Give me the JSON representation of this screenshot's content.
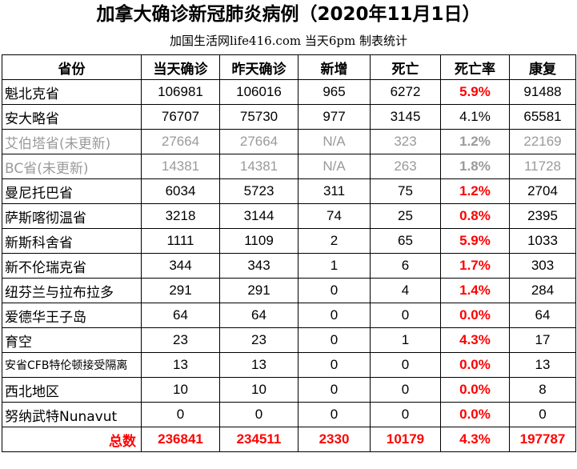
{
  "title": "加拿大确诊新冠肺炎病例（2020年11月1日）",
  "subtitle": "加国生活网life416.com 当天6pm 制表统计",
  "headers": [
    "省份",
    "当天确诊",
    "昨天确诊",
    "新增",
    "死亡",
    "死亡率",
    "康复"
  ],
  "rows": [
    {
      "province": "魁北克省",
      "today": "106981",
      "yesterday": "106016",
      "new": "965",
      "deaths": "6272",
      "rate": "5.9%",
      "recovered": "91488"
    },
    {
      "province": "安大略省",
      "today": "76707",
      "yesterday": "75730",
      "new": "977",
      "deaths": "3145",
      "rate": "4.1%",
      "recovered": "65581"
    },
    {
      "province": "艾伯塔省(未更新)",
      "today": "27664",
      "yesterday": "27664",
      "new": "N/A",
      "deaths": "323",
      "rate": "1.2%",
      "recovered": "22169"
    },
    {
      "province": "BC省(未更新)",
      "today": "14381",
      "yesterday": "14381",
      "new": "N/A",
      "deaths": "263",
      "rate": "1.8%",
      "recovered": "11728"
    },
    {
      "province": "曼尼托巴省",
      "today": "6034",
      "yesterday": "5723",
      "new": "311",
      "deaths": "75",
      "rate": "1.2%",
      "recovered": "2704"
    },
    {
      "province": "萨斯喀彻温省",
      "today": "3218",
      "yesterday": "3144",
      "new": "74",
      "deaths": "25",
      "rate": "0.8%",
      "recovered": "2395"
    },
    {
      "province": "新斯科舍省",
      "today": "1111",
      "yesterday": "1109",
      "new": "2",
      "deaths": "65",
      "rate": "5.9%",
      "recovered": "1033"
    },
    {
      "province": "新不伦瑞克省",
      "today": "344",
      "yesterday": "343",
      "new": "1",
      "deaths": "6",
      "rate": "1.7%",
      "recovered": "303"
    },
    {
      "province": "纽芬兰与拉布拉多",
      "today": "291",
      "yesterday": "291",
      "new": "0",
      "deaths": "4",
      "rate": "1.4%",
      "recovered": "284"
    },
    {
      "province": "爱德华王子岛",
      "today": "64",
      "yesterday": "64",
      "new": "0",
      "deaths": "0",
      "rate": "0.0%",
      "recovered": "64"
    },
    {
      "province": "育空",
      "today": "23",
      "yesterday": "23",
      "new": "0",
      "deaths": "1",
      "rate": "4.3%",
      "recovered": "17"
    },
    {
      "province": "安省CFB特伦顿接受隔离",
      "today": "13",
      "yesterday": "13",
      "new": "0",
      "deaths": "0",
      "rate": "0.0%",
      "recovered": "13"
    },
    {
      "province": "西北地区",
      "today": "10",
      "yesterday": "10",
      "new": "0",
      "deaths": "0",
      "rate": "0.0%",
      "recovered": "8"
    },
    {
      "province": "努纳武特Nunavut",
      "today": "0",
      "yesterday": "0",
      "new": "0",
      "deaths": "0",
      "rate": "0.0%",
      "recovered": "0"
    }
  ],
  "total": {
    "label": "总数",
    "today": "236841",
    "yesterday": "234511",
    "new": "2330",
    "deaths": "10179",
    "rate": "4.3%",
    "recovered": "197787"
  },
  "colors": {
    "highlight": "#ff0000",
    "stale": "#9a9a9a"
  }
}
